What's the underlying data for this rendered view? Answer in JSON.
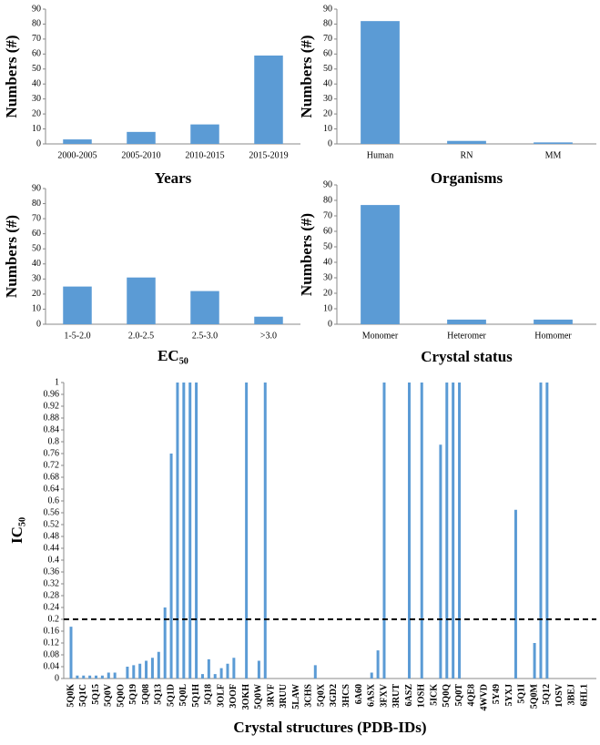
{
  "chart_data": [
    {
      "type": "bar",
      "ylabel": "Numbers (#)",
      "xlabel": "Years",
      "categories": [
        "2000-2005",
        "2005-2010",
        "2010-2015",
        "2015-2019"
      ],
      "values": [
        3,
        8,
        13,
        59
      ],
      "color": "#5b9bd5",
      "ylim": [
        0,
        90
      ],
      "yticks": [
        0,
        10,
        20,
        30,
        40,
        50,
        60,
        70,
        80,
        90
      ]
    },
    {
      "type": "bar",
      "ylabel": "Numbers (#)",
      "xlabel": "Organisms",
      "categories": [
        "Human",
        "RN",
        "MM"
      ],
      "values": [
        82,
        2,
        1
      ],
      "color": "#5b9bd5",
      "ylim": [
        0,
        90
      ],
      "yticks": [
        0,
        10,
        20,
        30,
        40,
        50,
        60,
        70,
        80,
        90
      ]
    },
    {
      "type": "bar",
      "ylabel": "Numbers (#)",
      "xlabel": "EC₅₀",
      "categories": [
        "1-5-2.0",
        "2.0-2.5",
        "2.5-3.0",
        ">3.0"
      ],
      "values": [
        25,
        31,
        22,
        5
      ],
      "color": "#5b9bd5",
      "ylim": [
        0,
        90
      ],
      "yticks": [
        0,
        10,
        20,
        30,
        40,
        50,
        60,
        70,
        80,
        90
      ]
    },
    {
      "type": "bar",
      "ylabel": "Numbers (#)",
      "xlabel": "Crystal status",
      "categories": [
        "Monomer",
        "Heteromer",
        "Homomer"
      ],
      "values": [
        77,
        3,
        3
      ],
      "color": "#5b9bd5",
      "ylim": [
        0,
        90
      ],
      "yticks": [
        0,
        10,
        20,
        30,
        40,
        50,
        60,
        70,
        80,
        90
      ]
    },
    {
      "type": "bar",
      "ylabel": "IC₅₀",
      "xlabel": "Crystal structures (PDB-IDs)",
      "categories": [
        "5Q0K",
        null,
        "5Q1C",
        null,
        "5Q15",
        null,
        "5Q0V",
        null,
        "5Q0O",
        null,
        "5Q19",
        null,
        "5Q08",
        null,
        "5Q13",
        null,
        "5Q1D",
        null,
        "5Q0L",
        null,
        "5Q1H",
        null,
        "5Q18",
        null,
        "3OLF",
        null,
        "3OOF",
        null,
        "3OKH",
        null,
        "5Q0W",
        null,
        "3RVF",
        null,
        "3RUU",
        null,
        "5LAW",
        null,
        "3CHS",
        null,
        "5Q0X",
        null,
        "3GD2",
        null,
        "3HCS",
        null,
        "6A60",
        null,
        "6ASX",
        null,
        "3FXV",
        null,
        "3RUT",
        null,
        "6ASZ",
        null,
        "1OSH",
        null,
        "5ICK",
        null,
        "5Q0Q",
        null,
        "5Q0T",
        null,
        "4QE8",
        null,
        "4WVD",
        null,
        "5Y49",
        null,
        "5YXJ",
        null,
        "5Q1I",
        null,
        "5Q0M",
        null,
        "5Q12",
        null,
        "1OSV",
        null,
        "3BEJ",
        null,
        "6HL1",
        null
      ],
      "values": [
        0.175,
        0.01,
        0.01,
        0.01,
        0.01,
        0.01,
        0.02,
        0.02,
        0,
        0.04,
        0.045,
        0.05,
        0.06,
        0.07,
        0.09,
        0.24,
        0.76,
        1,
        1,
        1,
        1,
        0.015,
        0.065,
        0.015,
        0.035,
        0.05,
        0.07,
        0,
        1,
        0,
        0.06,
        1,
        0,
        0,
        0,
        0,
        0,
        0,
        0,
        0.045,
        0,
        0,
        0,
        0,
        0,
        0,
        0,
        0,
        0.02,
        0.095,
        1,
        0,
        0,
        0,
        1,
        0,
        1,
        0,
        0,
        0.79,
        1,
        1,
        1,
        0,
        0,
        0,
        0,
        0,
        0,
        0,
        0,
        0.57,
        0,
        0,
        0.12,
        1,
        1,
        0,
        0,
        0,
        0,
        0,
        0,
        0
      ],
      "hline": 0.2,
      "color": "#5b9bd5",
      "ylim": [
        0,
        1
      ],
      "yticks": [
        0,
        0.04,
        0.08,
        0.12,
        0.16,
        0.2,
        0.24,
        0.28,
        0.32,
        0.36,
        0.4,
        0.44,
        0.48,
        0.52,
        0.56,
        0.6,
        0.64,
        0.68,
        0.72,
        0.76,
        0.8,
        0.84,
        0.88,
        0.92,
        0.96,
        1
      ]
    }
  ]
}
